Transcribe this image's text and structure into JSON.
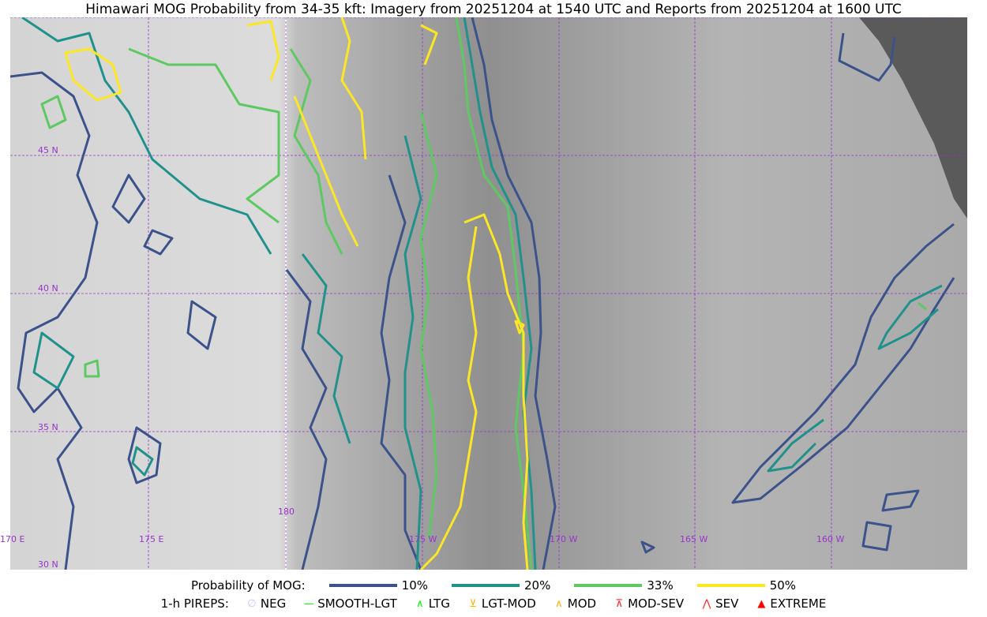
{
  "title": "Himawari MOG Probability from 34-35 kft: Imagery from 20251204 at 1540 UTC and Reports from 20251204 at 1600 UTC",
  "map": {
    "lon_labels": [
      "170 E",
      "175 E",
      "180",
      "175 W",
      "170 W",
      "165 W",
      "160 W"
    ],
    "lat_labels": [
      "45 N",
      "40 N",
      "35 N",
      "30 N"
    ],
    "gridline_color": "#9933cc",
    "no_data_color": "#5a5a5a"
  },
  "legend": {
    "prob_title": "Probability of MOG:",
    "levels": [
      {
        "label": "10%",
        "color": "#3b528b"
      },
      {
        "label": "20%",
        "color": "#21918c"
      },
      {
        "label": "33%",
        "color": "#5ec962"
      },
      {
        "label": "50%",
        "color": "#fde725"
      }
    ],
    "pireps_title": "1-h PIREPS:",
    "pireps": [
      {
        "label": "NEG",
        "icon": "slashed-circle",
        "color": "#c8c8ff"
      },
      {
        "label": "SMOOTH-LGT",
        "icon": "line",
        "color": "#00ff00"
      },
      {
        "label": "LTG",
        "icon": "caret",
        "color": "#00ff00"
      },
      {
        "label": "LGT-MOD",
        "icon": "caret-bar",
        "color": "#ffb000"
      },
      {
        "label": "MOD",
        "icon": "caret",
        "color": "#ffb000"
      },
      {
        "label": "MOD-SEV",
        "icon": "double-caret-bar",
        "color": "#ff2020"
      },
      {
        "label": "SEV",
        "icon": "double-caret",
        "color": "#ff2020"
      },
      {
        "label": "EXTREME",
        "icon": "filled-triangle",
        "color": "#ff0000"
      }
    ]
  }
}
